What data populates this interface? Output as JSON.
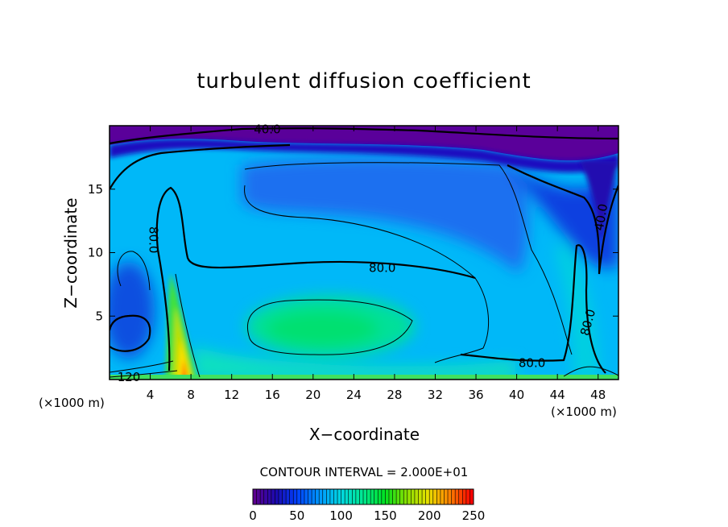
{
  "chart_data": {
    "type": "heatmap",
    "title": "turbulent diffusion coefficient",
    "xlabel": "X−coordinate",
    "ylabel": "Z−coordinate",
    "x_units_left": "(×1000 m)",
    "x_units_right": "(×1000 m)",
    "xlim": [
      0,
      50
    ],
    "ylim": [
      0,
      20
    ],
    "x_ticks": [
      4,
      8,
      12,
      16,
      20,
      24,
      28,
      32,
      36,
      40,
      44,
      48
    ],
    "y_ticks": [
      5,
      10,
      15
    ],
    "contour_interval_label": "CONTOUR INTERVAL = 2.000E+01",
    "contour_labels": [
      {
        "text": "40.0",
        "x": 15.5,
        "z": 19.7,
        "rotate": 0
      },
      {
        "text": "80.0",
        "x": 4.3,
        "z": 11.0,
        "rotate": 90
      },
      {
        "text": "80.0",
        "x": 26.8,
        "z": 8.8,
        "rotate": 0
      },
      {
        "text": "80.0",
        "x": 41.5,
        "z": 1.3,
        "rotate": 0
      },
      {
        "text": "80.0",
        "x": 47.0,
        "z": 4.5,
        "rotate": -75
      },
      {
        "text": "40.0",
        "x": 48.3,
        "z": 12.8,
        "rotate": -80
      },
      {
        "text": "120",
        "x": 1.9,
        "z": 0.2,
        "rotate": 0
      }
    ],
    "colorbar": {
      "min": 0,
      "max": 250,
      "ticks": [
        0,
        50,
        100,
        150,
        200,
        250
      ],
      "colors": [
        "#5c0090",
        "#1a0ab0",
        "#0044ff",
        "#0099ff",
        "#00d8e0",
        "#00e890",
        "#00e020",
        "#88e000",
        "#e8e000",
        "#ff8000",
        "#ff0000"
      ]
    },
    "grid": false,
    "legend": "colorbar-bottom"
  }
}
